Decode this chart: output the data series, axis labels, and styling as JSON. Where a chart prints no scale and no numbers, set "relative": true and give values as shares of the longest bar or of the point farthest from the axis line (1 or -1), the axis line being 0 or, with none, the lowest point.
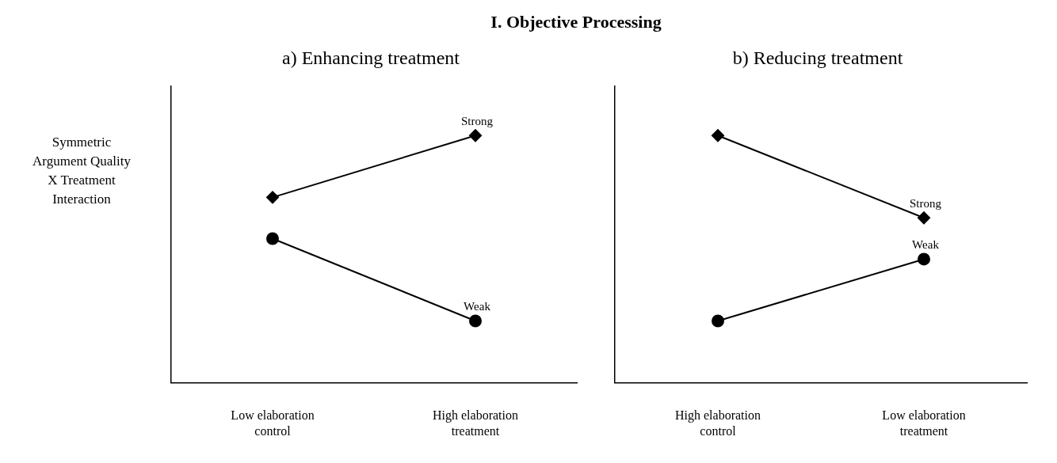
{
  "chart_data": [
    {
      "type": "line",
      "title": "a) Enhancing treatment",
      "annotations": [
        "I. Objective Processing"
      ],
      "ylabel": "Symmetric Argument Quality X Treatment Interaction",
      "relative": true,
      "categories": [
        "Low elaboration control",
        "High elaboration treatment"
      ],
      "series": [
        {
          "name": "Strong",
          "color": "#000000",
          "marker": "diamond",
          "values": [
            0.75,
            1
          ]
        },
        {
          "name": "Weak",
          "color": "#000000",
          "marker": "circle",
          "values": [
            0.583,
            0.25
          ]
        }
      ],
      "legend": false,
      "grid": false
    },
    {
      "type": "line",
      "title": "b) Reducing treatment",
      "relative": true,
      "categories": [
        "High elaboration control",
        "Low elaboration treatment"
      ],
      "series": [
        {
          "name": "Strong",
          "color": "#000000",
          "marker": "diamond",
          "values": [
            1,
            0.667
          ]
        },
        {
          "name": "Weak",
          "color": "#000000",
          "marker": "circle",
          "values": [
            0.25,
            0.5
          ]
        }
      ],
      "legend": false,
      "grid": false
    }
  ]
}
